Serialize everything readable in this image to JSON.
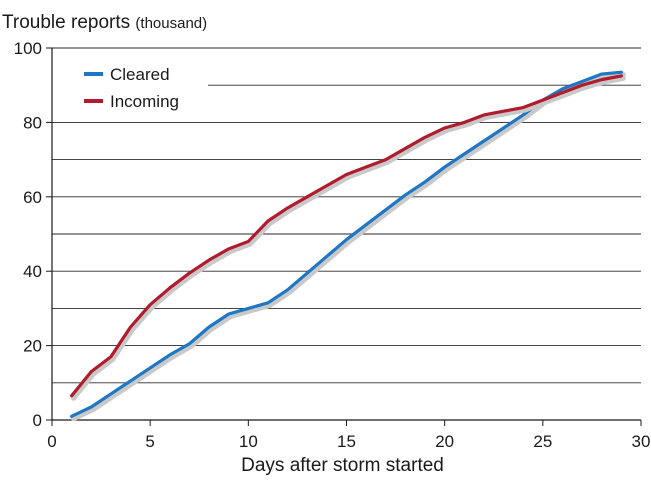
{
  "chart_data": {
    "type": "line",
    "title": "Trouble reports",
    "title_unit": "(thousand)",
    "xlabel": "Days after storm started",
    "ylabel": "",
    "xlim": [
      0,
      30
    ],
    "ylim": [
      0,
      100
    ],
    "x_ticks": [
      "0",
      "5",
      "10",
      "15",
      "20",
      "25",
      "30"
    ],
    "y_ticks": [
      "0",
      "20",
      "40",
      "60",
      "80",
      "100"
    ],
    "grid": "horizontal",
    "legend": "top-left",
    "series": [
      {
        "name": "Cleared",
        "color": "#1f77c4",
        "x": [
          1,
          2,
          3,
          4,
          5,
          6,
          7,
          8,
          9,
          10,
          11,
          12,
          13,
          14,
          15,
          16,
          17,
          18,
          19,
          20,
          21,
          22,
          23,
          24,
          25,
          26,
          27,
          28,
          29
        ],
        "values": [
          1,
          3.5,
          7,
          10.5,
          14,
          17.5,
          20.5,
          25,
          28.5,
          30,
          31.5,
          35,
          39.5,
          44,
          48.5,
          52.5,
          56.5,
          60.5,
          64,
          68,
          71.5,
          75,
          78.5,
          82,
          86,
          89,
          91,
          93,
          93.5
        ]
      },
      {
        "name": "Incoming",
        "color": "#b01c2e",
        "x": [
          1,
          2,
          3,
          4,
          5,
          6,
          7,
          8,
          9,
          10,
          11,
          12,
          13,
          14,
          15,
          16,
          17,
          18,
          19,
          20,
          21,
          22,
          23,
          24,
          25,
          26,
          27,
          28,
          29
        ],
        "values": [
          6.5,
          13,
          17,
          25,
          31,
          35.5,
          39.5,
          43,
          46,
          48,
          53.5,
          57,
          60,
          63,
          66,
          68,
          70,
          73,
          76,
          78.5,
          80,
          82,
          83,
          84,
          86,
          88,
          90,
          91.5,
          92.5
        ]
      }
    ]
  }
}
